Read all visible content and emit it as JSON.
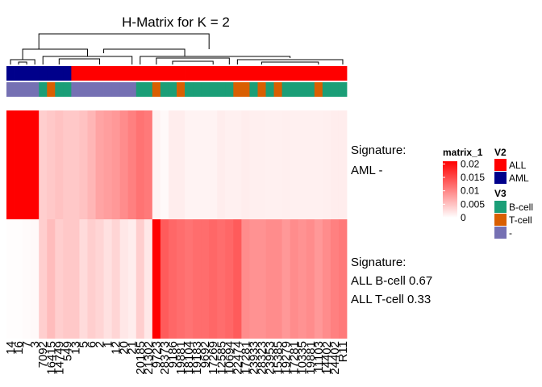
{
  "chart_data": {
    "type": "heatmap",
    "title": "H-Matrix for K = 2",
    "columns": [
      "14",
      "16",
      "7",
      "3",
      "7092",
      "16415",
      "14749",
      "549",
      "13",
      "5",
      "6",
      "2",
      "1",
      "12",
      "20",
      "21",
      "20185",
      "21302",
      "9723",
      "28373",
      "9186",
      "19881",
      "18104",
      "19183",
      "9692",
      "17269",
      "12585",
      "10694",
      "22474",
      "17281",
      "23933",
      "28323",
      "23953",
      "15385",
      "19279",
      "17281",
      "10335",
      "19881",
      "11103",
      "14402",
      "24402",
      "R11"
    ],
    "rows": [
      {
        "label_lines": [
          "Signature:",
          "AML -"
        ],
        "values": [
          0.021,
          0.021,
          0.021,
          0.021,
          0.004,
          0.0045,
          0.005,
          0.0045,
          0.0045,
          0.005,
          0.006,
          0.0075,
          0.008,
          0.0085,
          0.0095,
          0.0105,
          0.0115,
          0.011,
          0.001,
          0.0005,
          0.0015,
          0.0015,
          0.001,
          0.001,
          0.001,
          0.001,
          0.0015,
          0.0012,
          0.0012,
          0.0015,
          0.0013,
          0.0013,
          0.0012,
          0.0012,
          0.0013,
          0.0012,
          0.0012,
          0.0012,
          0.0012,
          0.0013,
          0.0015,
          0.0015
        ]
      },
      {
        "label_lines": [
          "Signature:",
          "ALL B-cell 0.67",
          "ALL T-cell 0.33"
        ],
        "values": [
          0.0002,
          0.0002,
          0.0003,
          0.0005,
          0.004,
          0.0055,
          0.004,
          0.0045,
          0.0045,
          0.003,
          0.004,
          0.0035,
          0.0025,
          0.0035,
          0.002,
          0.0015,
          0.004,
          0.002,
          0.021,
          0.0135,
          0.0125,
          0.012,
          0.0115,
          0.012,
          0.012,
          0.0125,
          0.012,
          0.0125,
          0.0135,
          0.0095,
          0.009,
          0.009,
          0.0095,
          0.0095,
          0.0085,
          0.0095,
          0.009,
          0.0095,
          0.0085,
          0.0095,
          0.0105,
          0.011
        ]
      }
    ],
    "annotations": {
      "V2": [
        "AML",
        "AML",
        "AML",
        "AML",
        "AML",
        "AML",
        "AML",
        "AML",
        "ALL",
        "ALL",
        "ALL",
        "ALL",
        "ALL",
        "ALL",
        "ALL",
        "ALL",
        "ALL",
        "ALL",
        "ALL",
        "ALL",
        "ALL",
        "ALL",
        "ALL",
        "ALL",
        "ALL",
        "ALL",
        "ALL",
        "ALL",
        "ALL",
        "ALL",
        "ALL",
        "ALL",
        "ALL",
        "ALL",
        "ALL",
        "ALL",
        "ALL",
        "ALL",
        "ALL",
        "ALL",
        "ALL",
        "ALL"
      ],
      "V3": [
        "-",
        "-",
        "-",
        "-",
        "B-cell",
        "T-cell",
        "B-cell",
        "B-cell",
        "-",
        "-",
        "-",
        "-",
        "-",
        "-",
        "-",
        "-",
        "B-cell",
        "B-cell",
        "T-cell",
        "B-cell",
        "B-cell",
        "T-cell",
        "B-cell",
        "B-cell",
        "B-cell",
        "B-cell",
        "B-cell",
        "B-cell",
        "T-cell",
        "T-cell",
        "B-cell",
        "T-cell",
        "B-cell",
        "T-cell",
        "B-cell",
        "B-cell",
        "B-cell",
        "B-cell",
        "T-cell",
        "B-cell",
        "B-cell",
        "B-cell"
      ]
    },
    "legend": {
      "matrix_title": "matrix_1",
      "matrix_ticks": [
        "0.02",
        "0.015",
        "0.01",
        "0.005",
        "0"
      ],
      "matrix_tick_values": [
        0.02,
        0.015,
        0.01,
        0.005,
        0
      ],
      "v2_title": "V2",
      "v2_items": [
        {
          "label": "ALL",
          "color": "#ff0000"
        },
        {
          "label": "AML",
          "color": "#00008b"
        }
      ],
      "v3_title": "V3",
      "v3_items": [
        {
          "label": "B-cell",
          "color": "#1b9e77"
        },
        {
          "label": "T-cell",
          "color": "#d95f02"
        },
        {
          "label": "-",
          "color": "#7570b3"
        }
      ]
    },
    "color_scale": {
      "min": 0,
      "max": 0.021,
      "low": "#ffffff",
      "high": "#ff0000"
    },
    "dendrogram": true
  }
}
